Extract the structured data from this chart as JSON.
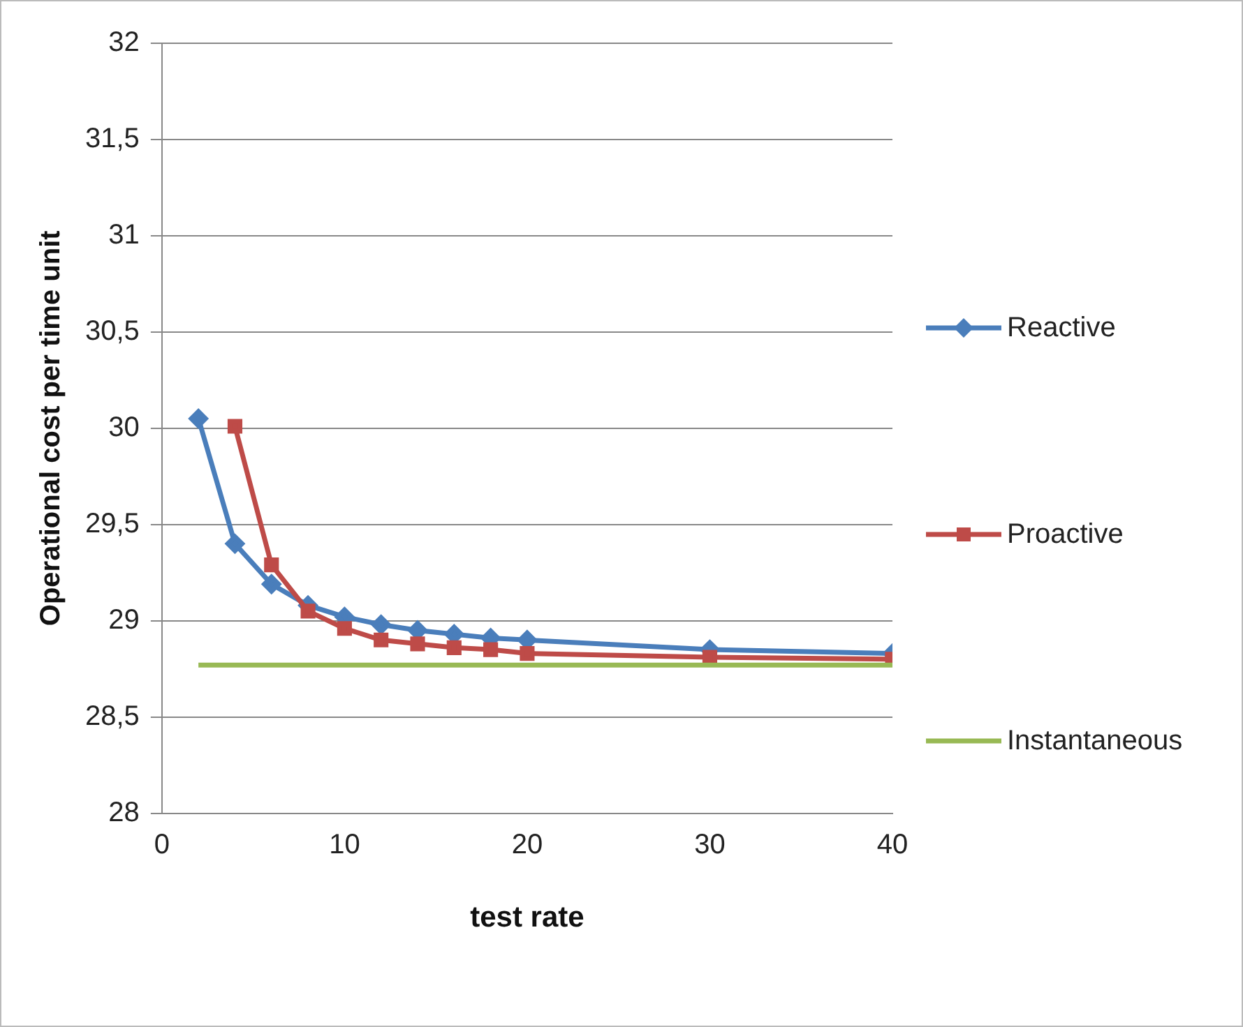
{
  "chart_data": {
    "type": "line",
    "xlabel": "test rate",
    "ylabel": "Operational cost per time unit",
    "x": [
      2,
      4,
      6,
      8,
      10,
      12,
      14,
      16,
      18,
      20,
      30,
      40
    ],
    "series": [
      {
        "name": "Reactive",
        "color": "#4a7ebb",
        "marker": "diamond",
        "values": [
          30.05,
          29.4,
          29.19,
          29.08,
          29.02,
          28.98,
          28.95,
          28.93,
          28.91,
          28.9,
          28.85,
          28.83
        ]
      },
      {
        "name": "Proactive",
        "color": "#be4b48",
        "marker": "square",
        "values": [
          null,
          30.01,
          29.29,
          29.05,
          28.96,
          28.9,
          28.88,
          28.86,
          28.85,
          28.83,
          28.81,
          28.8
        ]
      },
      {
        "name": "Instantaneous",
        "color": "#98b954",
        "marker": "none",
        "values": [
          28.77,
          28.77,
          28.77,
          28.77,
          28.77,
          28.77,
          28.77,
          28.77,
          28.77,
          28.77,
          28.77,
          28.77
        ]
      }
    ],
    "xlim": [
      0,
      40
    ],
    "xticks": [
      0,
      10,
      20,
      30,
      40
    ],
    "ylim": [
      28,
      32
    ],
    "yticks": [
      28,
      {
        "value": 28.5,
        "label": "28,5"
      },
      29,
      {
        "value": 29.5,
        "label": "29,5"
      },
      30,
      {
        "value": 30.5,
        "label": "30,5"
      },
      31,
      {
        "value": 31.5,
        "label": "31,5"
      },
      32
    ],
    "grid": "y",
    "legend": "right"
  }
}
